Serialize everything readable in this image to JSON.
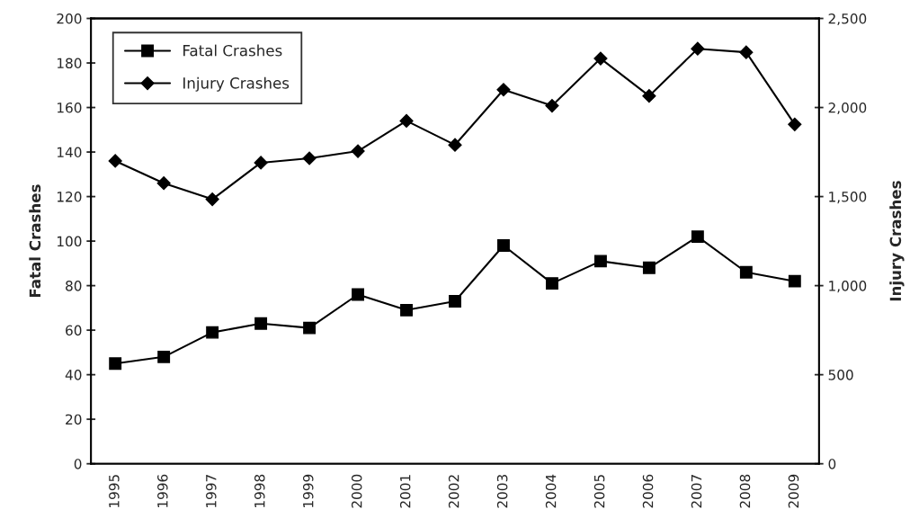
{
  "chart_data": {
    "type": "line",
    "ylabel": "Fatal Crashes",
    "y2label": "Injury Crashes",
    "categories": [
      "1995",
      "1996",
      "1997",
      "1998",
      "1999",
      "2000",
      "2001",
      "2002",
      "2003",
      "2004",
      "2005",
      "2006",
      "2007",
      "2008",
      "2009"
    ],
    "series": [
      {
        "name": "Fatal Crashes",
        "color": "#000000",
        "marker": "square",
        "values": [
          45,
          48,
          59,
          63,
          61,
          76,
          69,
          73,
          98,
          81,
          91,
          88,
          102,
          86,
          82
        ]
      },
      {
        "name": "Injury Crashes",
        "color": "#000000",
        "marker": "diamond",
        "axis": "y2",
        "values": [
          1700,
          1575,
          1485,
          1690,
          1715,
          1755,
          1925,
          1790,
          2100,
          2010,
          2275,
          2065,
          2330,
          2310,
          1905
        ]
      }
    ],
    "ylim": [
      0,
      200
    ],
    "yticks": [
      0,
      20,
      40,
      60,
      80,
      100,
      120,
      140,
      160,
      180,
      200
    ],
    "y2lim": [
      0,
      2500
    ],
    "y2ticks": [
      {
        "value": 0,
        "label": "0"
      },
      {
        "value": 500,
        "label": "500"
      },
      {
        "value": 1000,
        "label": "1,000"
      },
      {
        "value": 1500,
        "label": "1,500"
      },
      {
        "value": 2000,
        "label": "2,000"
      },
      {
        "value": 2500,
        "label": "2,500"
      }
    ],
    "grid": false,
    "legend": "top left",
    "line_style": "solid"
  }
}
